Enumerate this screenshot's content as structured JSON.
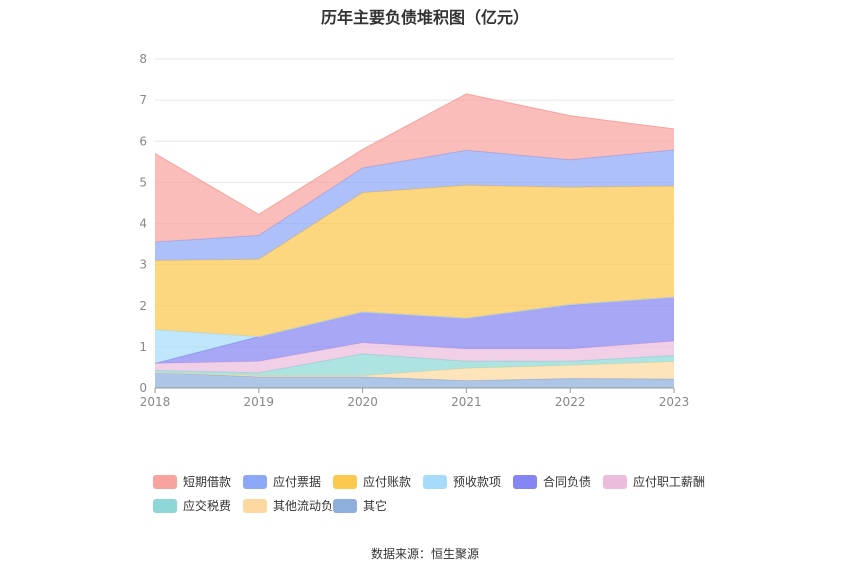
{
  "chart_data": {
    "type": "area",
    "title": "历年主要负债堆积图（亿元）",
    "categories": [
      "2018",
      "2019",
      "2020",
      "2021",
      "2022",
      "2023"
    ],
    "ylim": [
      0,
      8
    ],
    "yticks": [
      "0",
      "1",
      "2",
      "3",
      "4",
      "5",
      "6",
      "7",
      "8"
    ],
    "grid": true,
    "legend_position": "bottom",
    "stacked": true,
    "series": [
      {
        "name": "其它",
        "color": "#8eaedc",
        "values": [
          0.38,
          0.27,
          0.27,
          0.18,
          0.23,
          0.22
        ]
      },
      {
        "name": "其他流动负债",
        "color": "#fdd9a0",
        "values": [
          0.0,
          0.03,
          0.03,
          0.3,
          0.32,
          0.42
        ]
      },
      {
        "name": "应交税费",
        "color": "#8dd8d6",
        "values": [
          0.05,
          0.07,
          0.53,
          0.17,
          0.1,
          0.15
        ]
      },
      {
        "name": "应付职工薪酬",
        "color": "#ecbcdc",
        "values": [
          0.17,
          0.28,
          0.27,
          0.3,
          0.3,
          0.35
        ]
      },
      {
        "name": "合同负债",
        "color": "#8585f3",
        "values": [
          0.0,
          0.6,
          0.75,
          0.75,
          1.08,
          1.07
        ]
      },
      {
        "name": "预收款项",
        "color": "#a6dcfa",
        "values": [
          0.82,
          0.0,
          0.0,
          0.0,
          0.0,
          0.0
        ]
      },
      {
        "name": "应付账款",
        "color": "#fcc84f",
        "values": [
          1.68,
          1.88,
          2.9,
          3.23,
          2.85,
          2.7
        ]
      },
      {
        "name": "应付票据",
        "color": "#8ea8f8",
        "values": [
          0.45,
          0.58,
          0.6,
          0.85,
          0.67,
          0.88
        ]
      },
      {
        "name": "短期借款",
        "color": "#f8a39e",
        "values": [
          2.15,
          0.51,
          0.45,
          1.37,
          1.07,
          0.51
        ]
      }
    ]
  },
  "legend_order": [
    "短期借款",
    "应付票据",
    "应付账款",
    "预收款项",
    "合同负债",
    "应付职工薪酬",
    "应交税费",
    "其他流动负债",
    "其它"
  ],
  "source": "数据来源：恒生聚源"
}
